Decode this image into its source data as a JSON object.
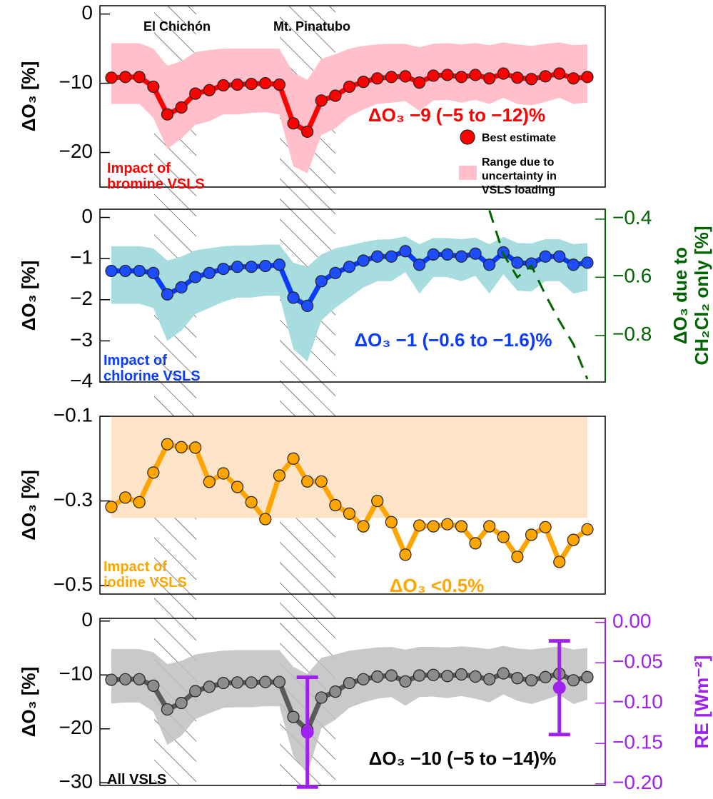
{
  "chart_data": [
    {
      "type": "line",
      "ylabel": "ΔO₃ [%]",
      "ylim": [
        -25,
        1.2
      ],
      "yticks": [
        0,
        {
          "value": -10,
          "label": "−10"
        },
        {
          "value": -20,
          "label": "−20"
        }
      ],
      "categories": [
        null,
        null,
        null,
        null,
        null,
        null,
        null,
        null,
        null,
        null,
        null,
        null,
        null,
        null,
        null,
        null,
        null,
        null,
        null,
        null,
        null,
        null,
        null,
        null,
        null,
        null,
        null,
        null,
        null,
        null,
        null,
        null,
        null,
        null,
        null
      ],
      "values": [
        -9.2,
        -9.1,
        -9.1,
        -10.5,
        -14.5,
        -13.5,
        -11.5,
        -11,
        -10.3,
        -10.2,
        -10.1,
        -10,
        -10.2,
        -15.8,
        -17,
        -12.5,
        -11.8,
        -10.5,
        -9.8,
        -9.3,
        -9.1,
        -9,
        -9.9,
        -8.9,
        -8.8,
        -9.1,
        -8.8,
        -9.3,
        -8.6,
        -9.2,
        -9.4,
        -9,
        -8.6,
        -9.3,
        -9.1
      ],
      "band_high": [
        -4.2,
        -4.2,
        -4.2,
        -5,
        -7.5,
        -6.8,
        -5.5,
        -5.2,
        -5,
        -5,
        -5,
        -5,
        -5,
        -8.5,
        -9.5,
        -6.5,
        -5.8,
        -5,
        -4.6,
        -4.4,
        -4.3,
        -4.3,
        -4.8,
        -4.3,
        -4.2,
        -4.4,
        -4.2,
        -4.5,
        -4.1,
        -4.4,
        -4.6,
        -4.3,
        -4.1,
        -4.5,
        -4.4
      ],
      "band_low": [
        -13,
        -13,
        -13,
        -15,
        -19.5,
        -18,
        -16,
        -15.5,
        -14.5,
        -14.5,
        -14.3,
        -14.2,
        -14.5,
        -22,
        -23,
        -17.5,
        -16.5,
        -14.8,
        -13.8,
        -13,
        -12.8,
        -12.6,
        -14,
        -12.5,
        -12.4,
        -12.8,
        -12.4,
        -13,
        -12.1,
        -13,
        -13.2,
        -12.7,
        -12.1,
        -13,
        -12.8
      ],
      "color": "#ff0000",
      "marker_color": "#ff0000",
      "band_color": "#ffc0cb",
      "annotation": "ΔO₃ −9 (−5 to −12)%",
      "panel_label": [
        "Impact of",
        "bromine VSLS"
      ],
      "legend": {
        "marker": "Best estimate",
        "band": [
          "Range due to",
          "uncertainty in",
          "VSLS loading"
        ]
      },
      "events": [
        "El Chichón",
        "Mt. Pinatubo"
      ]
    },
    {
      "type": "line",
      "ylabel": "ΔO₃ [%]",
      "ylim": [
        -4,
        0.2
      ],
      "yticks": [
        0,
        {
          "value": -1,
          "label": "−1"
        },
        {
          "value": -2,
          "label": "−2"
        },
        {
          "value": -3,
          "label": "−3"
        },
        {
          "value": -4,
          "label": "−4"
        }
      ],
      "categories": [
        null,
        null,
        null,
        null,
        null,
        null,
        null,
        null,
        null,
        null,
        null,
        null,
        null,
        null,
        null,
        null,
        null,
        null,
        null,
        null,
        null,
        null,
        null,
        null,
        null,
        null,
        null,
        null,
        null,
        null,
        null,
        null,
        null,
        null,
        null
      ],
      "values": [
        -1.3,
        -1.3,
        -1.3,
        -1.35,
        -1.87,
        -1.7,
        -1.45,
        -1.35,
        -1.25,
        -1.2,
        -1.2,
        -1.18,
        -1.15,
        -1.95,
        -2.15,
        -1.55,
        -1.35,
        -1.2,
        -1.05,
        -0.95,
        -0.95,
        -0.82,
        -1.15,
        -0.9,
        -0.9,
        -0.95,
        -0.88,
        -1.15,
        -0.85,
        -1.1,
        -1.12,
        -0.95,
        -0.95,
        -1.15,
        -1.1
      ],
      "band_high": [
        -0.7,
        -0.7,
        -0.7,
        -0.75,
        -1.05,
        -0.95,
        -0.8,
        -0.75,
        -0.7,
        -0.68,
        -0.68,
        -0.66,
        -0.66,
        -1.1,
        -1.2,
        -0.9,
        -0.75,
        -0.68,
        -0.6,
        -0.54,
        -0.53,
        -0.46,
        -0.65,
        -0.5,
        -0.5,
        -0.53,
        -0.49,
        -0.65,
        -0.47,
        -0.62,
        -0.63,
        -0.53,
        -0.53,
        -0.65,
        -0.62
      ],
      "band_low": [
        -2.1,
        -2.1,
        -2.1,
        -2.2,
        -3,
        -2.75,
        -2.35,
        -2.2,
        -2.05,
        -1.95,
        -1.95,
        -1.9,
        -1.9,
        -3.2,
        -3.5,
        -2.5,
        -2.2,
        -1.95,
        -1.7,
        -1.55,
        -1.55,
        -1.33,
        -1.85,
        -1.45,
        -1.45,
        -1.55,
        -1.42,
        -1.85,
        -1.38,
        -1.78,
        -1.8,
        -1.55,
        -1.55,
        -1.85,
        -1.78
      ],
      "color": "#0a3cff",
      "marker_color": "#1e4cff",
      "band_color": "#a8dde0",
      "annotation": "ΔO₃ −1 (−0.6 to −1.6)%",
      "panel_label": [
        "Impact of",
        "chlorine VSLS"
      ],
      "y2label": [
        "ΔO₃ due to",
        "CH₂Cl₂ only [%]"
      ],
      "y2lim": [
        -0.96,
        -0.366
      ],
      "y2ticks": [
        {
          "value": -0.4,
          "label": "−0.4"
        },
        {
          "value": -0.6,
          "label": "−0.6"
        },
        {
          "value": -0.8,
          "label": "−0.8"
        }
      ],
      "y2_series": {
        "values": [
          null,
          null,
          null,
          null,
          null,
          null,
          null,
          null,
          null,
          null,
          null,
          null,
          null,
          null,
          null,
          null,
          null,
          null,
          null,
          null,
          null,
          null,
          null,
          null,
          null,
          null,
          null,
          -0.37,
          -0.52,
          -0.6,
          -0.56,
          -0.66,
          -0.75,
          -0.83,
          -0.95
        ],
        "color": "#006400",
        "style": "dashed"
      }
    },
    {
      "type": "line",
      "ylabel": "ΔO₃ [%]",
      "ylim": [
        -0.52,
        -0.1
      ],
      "yticks": [
        {
          "value": -0.1,
          "label": "−0.1"
        },
        {
          "value": -0.3,
          "label": "−0.3"
        },
        {
          "value": -0.5,
          "label": "−0.5"
        }
      ],
      "categories": [
        null,
        null,
        null,
        null,
        null,
        null,
        null,
        null,
        null,
        null,
        null,
        null,
        null,
        null,
        null,
        null,
        null,
        null,
        null,
        null,
        null,
        null,
        null,
        null,
        null,
        null,
        null,
        null,
        null,
        null,
        null,
        null,
        null,
        null,
        null
      ],
      "values": [
        -0.314,
        -0.292,
        -0.303,
        -0.233,
        -0.166,
        -0.173,
        -0.174,
        -0.255,
        -0.235,
        -0.267,
        -0.303,
        -0.343,
        -0.24,
        -0.2,
        -0.254,
        -0.254,
        -0.31,
        -0.33,
        -0.36,
        -0.3,
        -0.35,
        -0.427,
        -0.358,
        -0.36,
        -0.355,
        -0.36,
        -0.4,
        -0.36,
        -0.385,
        -0.432,
        -0.38,
        -0.362,
        -0.444,
        -0.392,
        -0.367
      ],
      "band_high": [
        -0.1,
        -0.1,
        -0.1,
        -0.1,
        -0.1,
        -0.1,
        -0.1,
        -0.1,
        -0.1,
        -0.1,
        -0.1,
        -0.1,
        -0.1,
        -0.1,
        -0.1,
        -0.1,
        -0.1,
        -0.1,
        -0.1,
        -0.1,
        -0.1,
        -0.1,
        -0.1,
        -0.1,
        -0.1,
        -0.1,
        -0.1,
        -0.1,
        -0.1,
        -0.1,
        -0.1,
        -0.1,
        -0.1,
        -0.1,
        -0.1
      ],
      "band_low": [
        -0.34,
        -0.34,
        -0.34,
        -0.34,
        -0.34,
        -0.34,
        -0.34,
        -0.34,
        -0.34,
        -0.34,
        -0.34,
        -0.34,
        -0.34,
        -0.34,
        -0.34,
        -0.34,
        -0.34,
        -0.34,
        -0.34,
        -0.34,
        -0.34,
        -0.34,
        -0.34,
        -0.34,
        -0.34,
        -0.34,
        -0.34,
        -0.34,
        -0.34,
        -0.34,
        -0.34,
        -0.34,
        -0.34,
        -0.34,
        -0.34
      ],
      "color": "#ffa500",
      "marker_color": "#ffa500",
      "band_color": "#fde3c8",
      "annotation": "ΔO₃ <0.5%",
      "panel_label": [
        "Impact of",
        "iodine VSLS"
      ]
    },
    {
      "type": "line",
      "ylabel": "ΔO₃ [%]",
      "ylim": [
        -30.5,
        0.5
      ],
      "yticks": [
        0,
        {
          "value": -10,
          "label": "−10"
        },
        {
          "value": -20,
          "label": "−20"
        },
        {
          "value": -30,
          "label": "−30"
        }
      ],
      "categories": [
        null,
        null,
        null,
        null,
        null,
        null,
        null,
        null,
        null,
        null,
        null,
        null,
        null,
        null,
        null,
        null,
        null,
        null,
        null,
        null,
        null,
        null,
        null,
        null,
        null,
        null,
        null,
        null,
        null,
        null,
        null,
        null,
        null,
        null,
        null
      ],
      "values": [
        -10.9,
        -10.8,
        -10.8,
        -12,
        -16.4,
        -15.2,
        -13,
        -12.2,
        -11.5,
        -11.4,
        -11.4,
        -11.3,
        -11.3,
        -17.8,
        -20.2,
        -14.2,
        -13.1,
        -11.5,
        -10.8,
        -10.3,
        -10.1,
        -11.2,
        -10.1,
        -10,
        -10.2,
        -9.9,
        -10.3,
        -10.8,
        -9.7,
        -10.6,
        -11,
        -10.4,
        -9.8,
        -11,
        -10.4
      ],
      "band_high": [
        -5.2,
        -5.2,
        -5.2,
        -5.8,
        -8,
        -7.4,
        -6.2,
        -5.8,
        -5.5,
        -5.4,
        -5.4,
        -5.4,
        -5.4,
        -8.5,
        -9.8,
        -6.8,
        -6.2,
        -5.5,
        -5.2,
        -4.9,
        -4.8,
        -5.3,
        -4.8,
        -4.8,
        -4.9,
        -4.7,
        -4.9,
        -5.2,
        -4.6,
        -5.1,
        -5.3,
        -5,
        -4.7,
        -5.3,
        -5
      ],
      "band_low": [
        -15.3,
        -15.1,
        -15.1,
        -16.8,
        -23,
        -21.3,
        -18.2,
        -17.1,
        -16.1,
        -16,
        -16,
        -15.8,
        -15.8,
        -25,
        -28.3,
        -19.9,
        -18.3,
        -16.1,
        -15.1,
        -14.4,
        -14.1,
        -15.7,
        -14.1,
        -14,
        -14.3,
        -13.9,
        -14.4,
        -15.1,
        -13.6,
        -14.8,
        -15.4,
        -14.6,
        -13.7,
        -15.4,
        -14.6
      ],
      "color": "#5a5a5a",
      "marker_color": "#8c8c8c",
      "band_color": "#c0c0c0",
      "annotation": "ΔO₃ −10 (−5 to −14)%",
      "panel_label": [
        "All VSLS"
      ],
      "y2label": [
        "RE [Wm⁻²]"
      ],
      "y2lim": [
        -0.202,
        0.005
      ],
      "y2ticks": [
        {
          "value": 0,
          "label": "0.00"
        },
        {
          "value": -0.05,
          "label": "−0.05"
        },
        {
          "value": -0.1,
          "label": "−0.10"
        },
        {
          "value": -0.15,
          "label": "−0.15"
        },
        {
          "value": -0.2,
          "label": "−0.20"
        }
      ],
      "y2_series": {
        "values": [
          null,
          null,
          null,
          null,
          null,
          null,
          null,
          null,
          null,
          null,
          null,
          null,
          null,
          null,
          -0.136,
          null,
          null,
          null,
          null,
          null,
          null,
          null,
          null,
          null,
          null,
          null,
          null,
          null,
          null,
          null,
          null,
          null,
          -0.081,
          null,
          null
        ],
        "errors": [
          null,
          null,
          null,
          null,
          null,
          null,
          null,
          null,
          null,
          null,
          null,
          null,
          null,
          null,
          0.068,
          null,
          null,
          null,
          null,
          null,
          null,
          null,
          null,
          null,
          null,
          null,
          null,
          null,
          null,
          null,
          null,
          null,
          0.058,
          null,
          null
        ],
        "color": "#a020f0",
        "style": "errorbar"
      }
    }
  ]
}
